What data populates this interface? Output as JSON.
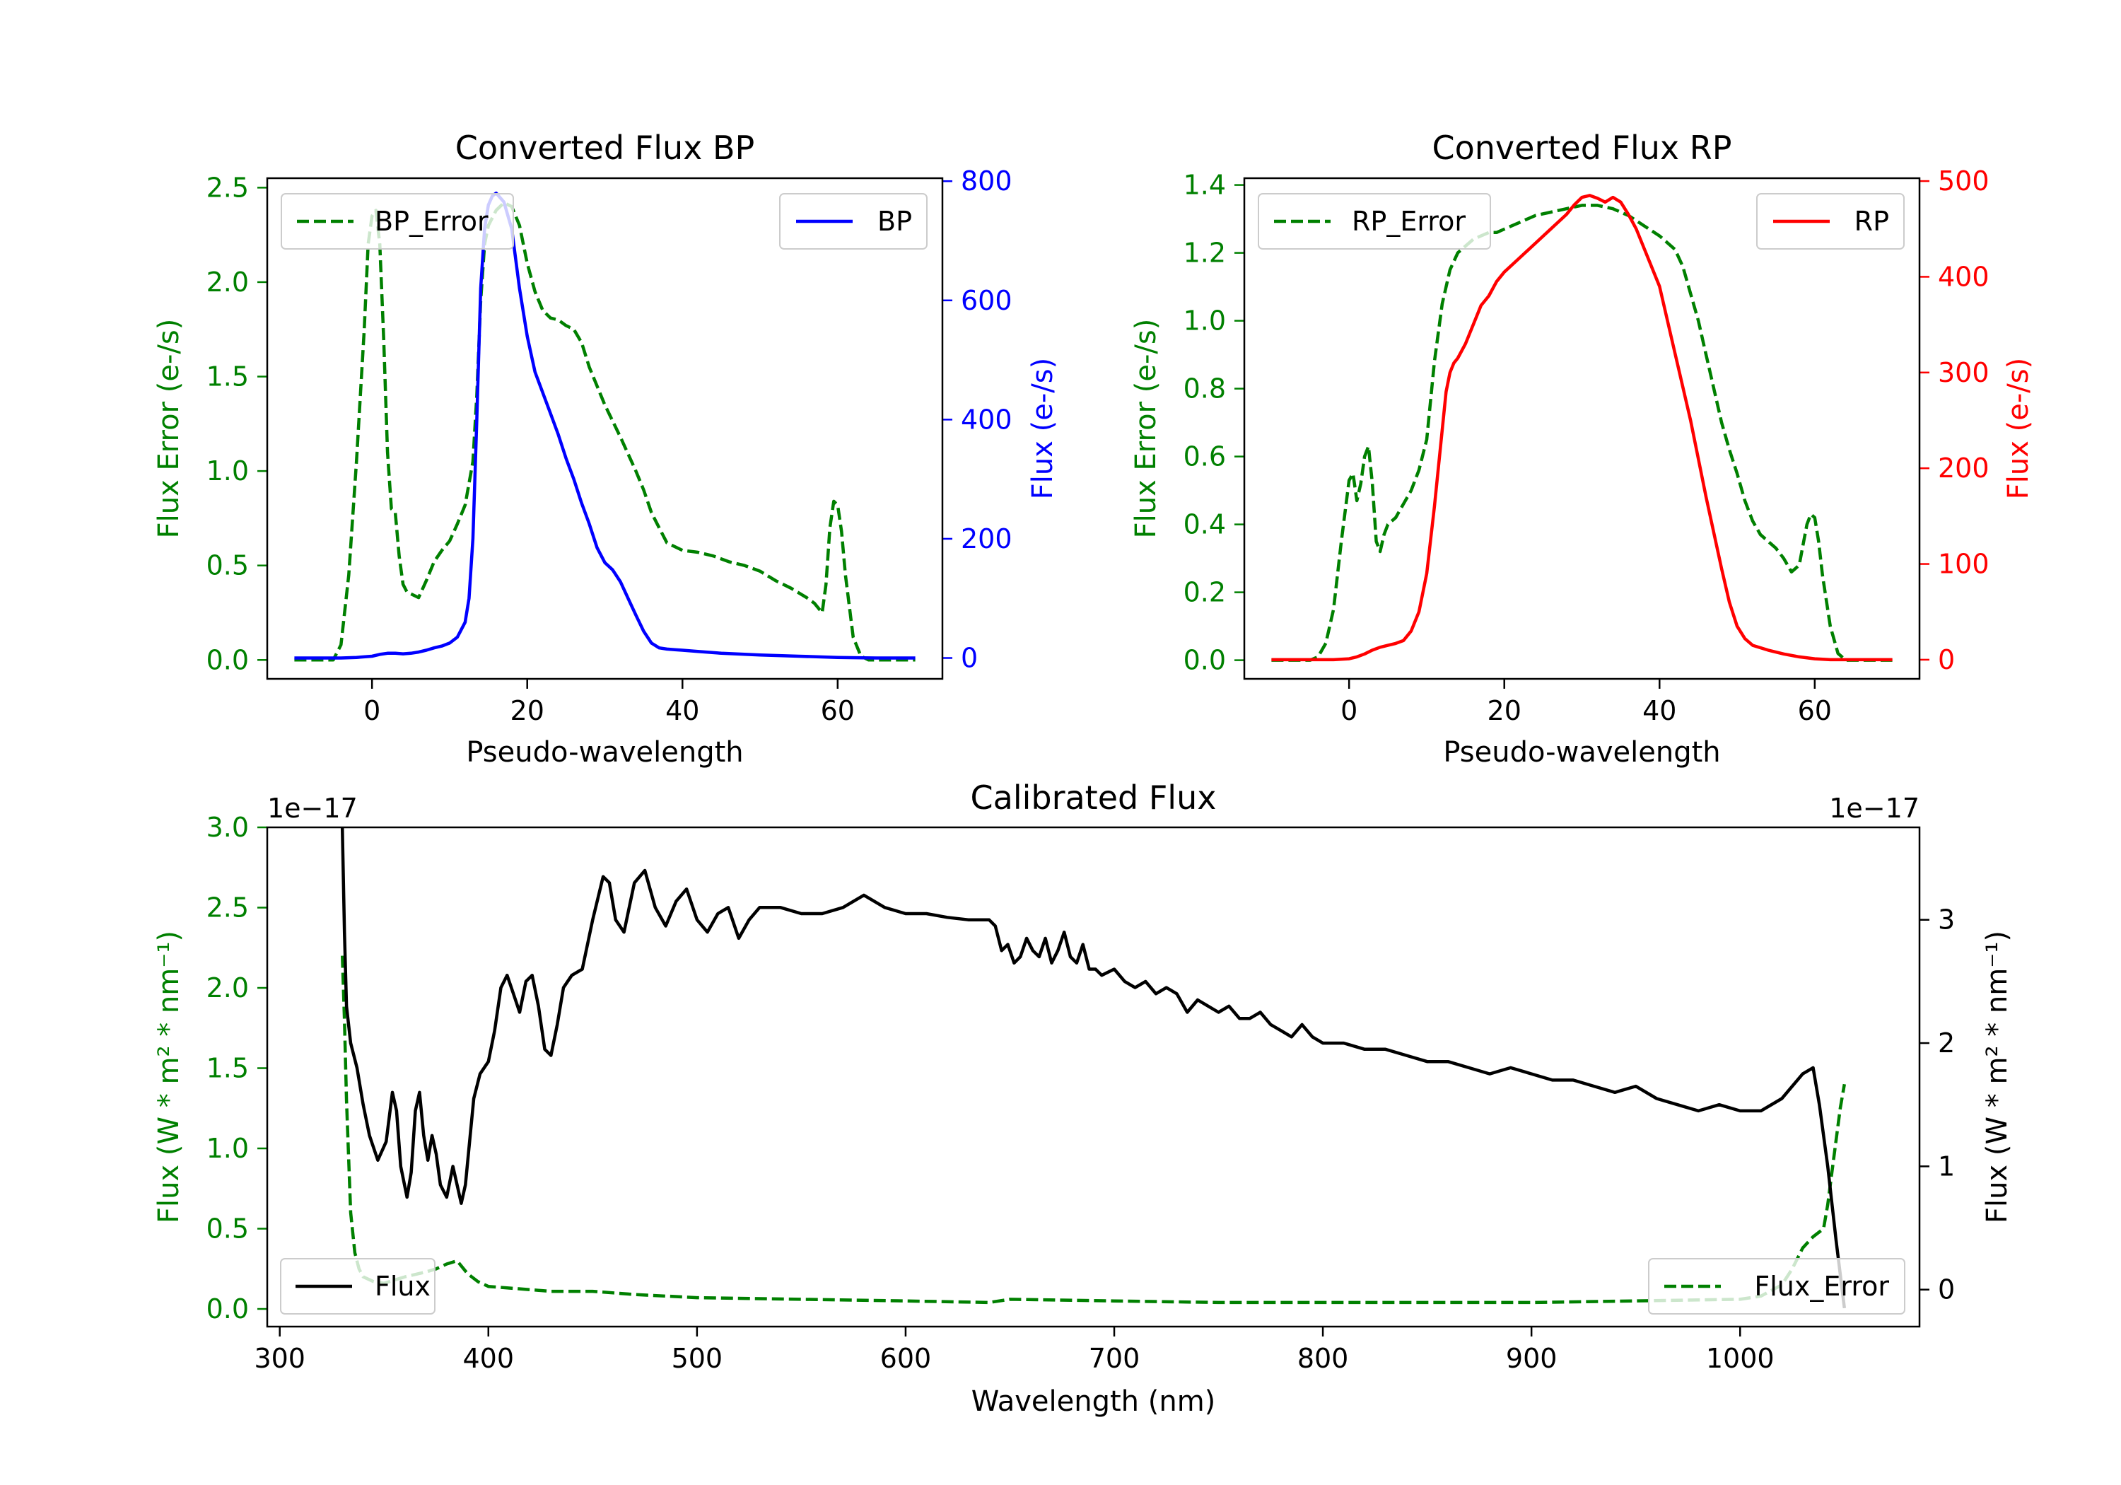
{
  "chart_data": [
    {
      "type": "line",
      "title": "Converted Flux BP",
      "xlabel": "Pseudo-wavelength",
      "ylabel_left": "Flux Error (e-/s)",
      "ylabel_right": "Flux (e-/s)",
      "xlim": [
        -13.5,
        73.5
      ],
      "ylim_left": [
        -0.1,
        2.55
      ],
      "ylim_right": [
        -35,
        805
      ],
      "xticks": [
        0,
        20,
        40,
        60
      ],
      "yticks_left": [
        0.0,
        0.5,
        1.0,
        1.5,
        2.0,
        2.5
      ],
      "yticks_right": [
        0,
        200,
        400,
        600,
        800
      ],
      "left_axis_color": "#008000",
      "right_axis_color": "#0000ff",
      "legend_left": "top-left",
      "legend_right": "top-right",
      "series": [
        {
          "name": "BP_Error",
          "axis": "left",
          "style": "dashed",
          "color": "#008000",
          "x": [
            -10,
            -5,
            -4,
            -3,
            -2,
            -1,
            -0.5,
            0,
            0.5,
            1,
            1.5,
            2,
            2.5,
            3,
            3.5,
            4,
            4.5,
            5,
            6,
            7,
            8,
            9,
            10,
            11,
            12,
            13,
            13.5,
            14,
            14.5,
            15,
            16,
            17,
            18,
            19,
            20,
            21,
            22,
            23,
            24,
            25,
            26,
            27,
            28,
            30,
            32,
            34,
            35,
            36,
            37,
            38,
            40,
            42,
            44,
            46,
            48,
            50,
            52,
            54,
            56,
            57,
            58,
            58.5,
            59,
            59.5,
            60,
            60.5,
            61,
            62,
            63,
            64,
            66,
            70
          ],
          "values": [
            0.0,
            0.0,
            0.08,
            0.45,
            1.05,
            1.75,
            2.2,
            2.35,
            2.38,
            2.2,
            1.7,
            1.1,
            0.8,
            0.78,
            0.55,
            0.4,
            0.36,
            0.35,
            0.33,
            0.42,
            0.52,
            0.58,
            0.63,
            0.72,
            0.82,
            1.05,
            1.4,
            1.9,
            2.2,
            2.3,
            2.38,
            2.42,
            2.4,
            2.3,
            2.1,
            1.95,
            1.85,
            1.81,
            1.8,
            1.77,
            1.75,
            1.68,
            1.55,
            1.35,
            1.18,
            1.0,
            0.9,
            0.78,
            0.7,
            0.62,
            0.58,
            0.57,
            0.55,
            0.52,
            0.5,
            0.47,
            0.42,
            0.38,
            0.33,
            0.3,
            0.25,
            0.4,
            0.7,
            0.84,
            0.82,
            0.68,
            0.45,
            0.12,
            0.02,
            0.0,
            0.0,
            0.0
          ]
        },
        {
          "name": "BP",
          "axis": "right",
          "style": "solid",
          "color": "#0000ff",
          "x": [
            -10,
            -4,
            -2,
            0,
            1,
            2,
            3,
            4,
            5,
            6,
            7,
            8,
            9,
            10,
            11,
            12,
            12.5,
            13,
            13.5,
            14,
            14.5,
            15,
            15.5,
            16,
            17,
            18,
            19,
            20,
            21,
            22,
            23,
            24,
            25,
            26,
            27,
            28,
            29,
            30,
            31,
            32,
            33,
            34,
            35,
            36,
            37,
            38,
            39,
            40,
            42,
            45,
            50,
            55,
            60,
            65,
            70
          ],
          "values": [
            0,
            0,
            1,
            3,
            6,
            8,
            8,
            7,
            8,
            10,
            13,
            17,
            20,
            25,
            35,
            60,
            100,
            200,
            400,
            620,
            720,
            760,
            775,
            780,
            765,
            720,
            620,
            540,
            480,
            445,
            410,
            375,
            335,
            300,
            260,
            225,
            185,
            160,
            148,
            128,
            100,
            72,
            45,
            25,
            17,
            15,
            14,
            13,
            11,
            8,
            5,
            3,
            1,
            0,
            0
          ]
        }
      ]
    },
    {
      "type": "line",
      "title": "Converted Flux RP",
      "xlabel": "Pseudo-wavelength",
      "ylabel_left": "Flux Error (e-/s)",
      "ylabel_right": "Flux (e-/s)",
      "xlim": [
        -13.5,
        73.5
      ],
      "ylim_left": [
        -0.055,
        1.42
      ],
      "ylim_right": [
        -20,
        503
      ],
      "xticks": [
        0,
        20,
        40,
        60
      ],
      "yticks_left": [
        0.0,
        0.2,
        0.4,
        0.6,
        0.8,
        1.0,
        1.2,
        1.4
      ],
      "yticks_right": [
        0,
        100,
        200,
        300,
        400,
        500
      ],
      "left_axis_color": "#008000",
      "right_axis_color": "#ff0000",
      "legend_left": "top-left",
      "legend_right": "top-right",
      "series": [
        {
          "name": "RP_Error",
          "axis": "left",
          "style": "dashed",
          "color": "#008000",
          "x": [
            -10,
            -5,
            -4,
            -3,
            -2,
            -1,
            0,
            0.5,
            1,
            1.5,
            2,
            2.5,
            3,
            3.5,
            4,
            4.5,
            5,
            6,
            7,
            8,
            9,
            10,
            11,
            12,
            13,
            14,
            15,
            16,
            17,
            18,
            19,
            20,
            22,
            24,
            26,
            28,
            30,
            32,
            34,
            36,
            38,
            40,
            42,
            43,
            44,
            45,
            46,
            47,
            48,
            49,
            50,
            51,
            52,
            53,
            54,
            55,
            56,
            57,
            58,
            58.5,
            59,
            59.5,
            60,
            60.5,
            61,
            62,
            63,
            64,
            66,
            70
          ],
          "values": [
            0.0,
            0.0,
            0.01,
            0.05,
            0.15,
            0.35,
            0.53,
            0.55,
            0.47,
            0.52,
            0.6,
            0.63,
            0.52,
            0.35,
            0.32,
            0.37,
            0.4,
            0.42,
            0.46,
            0.5,
            0.56,
            0.65,
            0.88,
            1.05,
            1.15,
            1.2,
            1.22,
            1.24,
            1.25,
            1.26,
            1.26,
            1.27,
            1.29,
            1.31,
            1.32,
            1.33,
            1.34,
            1.34,
            1.33,
            1.31,
            1.28,
            1.25,
            1.21,
            1.16,
            1.08,
            1.0,
            0.9,
            0.8,
            0.7,
            0.62,
            0.55,
            0.47,
            0.41,
            0.37,
            0.35,
            0.33,
            0.3,
            0.26,
            0.28,
            0.34,
            0.4,
            0.43,
            0.42,
            0.35,
            0.25,
            0.1,
            0.02,
            0.0,
            0.0,
            0.0
          ]
        },
        {
          "name": "RP",
          "axis": "right",
          "style": "solid",
          "color": "#ff0000",
          "x": [
            -10,
            -2,
            0,
            1,
            2,
            3,
            4,
            5,
            6,
            7,
            8,
            9,
            10,
            11,
            12,
            12.5,
            13,
            13.5,
            14,
            15,
            16,
            17,
            18,
            19,
            20,
            22,
            24,
            26,
            28,
            29,
            30,
            31,
            32,
            33,
            34,
            35,
            36,
            37,
            38,
            39,
            40,
            42,
            44,
            46,
            48,
            49,
            50,
            51,
            52,
            54,
            56,
            58,
            60,
            62,
            66,
            70
          ],
          "values": [
            0,
            0,
            1,
            3,
            6,
            10,
            13,
            15,
            17,
            20,
            30,
            50,
            90,
            160,
            240,
            280,
            300,
            310,
            315,
            330,
            350,
            370,
            380,
            395,
            405,
            420,
            435,
            450,
            465,
            475,
            483,
            485,
            482,
            478,
            483,
            478,
            465,
            450,
            430,
            410,
            390,
            320,
            250,
            170,
            95,
            60,
            35,
            22,
            15,
            10,
            6,
            3,
            1,
            0,
            0,
            0
          ]
        }
      ]
    },
    {
      "type": "line",
      "title": "Calibrated Flux",
      "xlabel": "Wavelength (nm)",
      "ylabel_left": "Flux (W * m² * nm⁻¹)",
      "ylabel_right": "Flux (W * m² * nm⁻¹)",
      "offset_left": "1e−17",
      "offset_right": "1e−17",
      "xlim": [
        294,
        1086
      ],
      "ylim_left": [
        -0.11,
        3.0
      ],
      "ylim_right": [
        -0.3,
        3.75
      ],
      "xticks": [
        300,
        400,
        500,
        600,
        700,
        800,
        900,
        1000
      ],
      "yticks_left": [
        0.0,
        0.5,
        1.0,
        1.5,
        2.0,
        2.5,
        3.0
      ],
      "yticks_right": [
        0,
        1,
        2,
        3
      ],
      "left_axis_color": "#008000",
      "right_axis_color": "#000000",
      "legend_left": "bottom-right",
      "legend_right": "bottom-left",
      "series": [
        {
          "name": "Flux_Error",
          "axis": "left",
          "style": "dashed",
          "color": "#008000",
          "x": [
            330,
            331,
            332,
            334,
            336,
            338,
            340,
            345,
            350,
            360,
            370,
            375,
            380,
            385,
            390,
            395,
            400,
            410,
            420,
            430,
            450,
            470,
            500,
            550,
            600,
            640,
            650,
            700,
            750,
            800,
            850,
            900,
            950,
            1000,
            1010,
            1020,
            1025,
            1030,
            1035,
            1038,
            1040,
            1042,
            1045,
            1048,
            1050
          ],
          "values": [
            2.2,
            1.8,
            1.3,
            0.6,
            0.35,
            0.25,
            0.2,
            0.17,
            0.16,
            0.2,
            0.23,
            0.25,
            0.28,
            0.3,
            0.22,
            0.17,
            0.14,
            0.13,
            0.12,
            0.11,
            0.11,
            0.09,
            0.07,
            0.06,
            0.05,
            0.04,
            0.06,
            0.05,
            0.04,
            0.04,
            0.04,
            0.04,
            0.05,
            0.06,
            0.08,
            0.15,
            0.25,
            0.38,
            0.45,
            0.48,
            0.5,
            0.65,
            0.95,
            1.25,
            1.4
          ]
        },
        {
          "name": "Flux",
          "axis": "right",
          "style": "solid",
          "color": "#000000",
          "x": [
            330,
            331,
            332,
            334,
            337,
            340,
            343,
            347,
            351,
            354,
            356,
            358,
            361,
            363,
            365,
            367,
            369,
            371,
            373,
            375,
            377,
            380,
            383,
            385,
            387,
            389,
            391,
            393,
            396,
            400,
            403,
            406,
            409,
            412,
            415,
            418,
            421,
            424,
            427,
            430,
            433,
            436,
            440,
            445,
            450,
            455,
            458,
            461,
            465,
            470,
            475,
            480,
            485,
            490,
            495,
            500,
            505,
            510,
            515,
            520,
            525,
            530,
            540,
            550,
            560,
            570,
            580,
            590,
            600,
            610,
            620,
            630,
            640,
            643,
            646,
            649,
            652,
            655,
            658,
            661,
            664,
            667,
            670,
            673,
            676,
            679,
            682,
            685,
            688,
            691,
            694,
            700,
            705,
            710,
            715,
            720,
            725,
            730,
            735,
            740,
            745,
            750,
            755,
            760,
            765,
            770,
            775,
            780,
            785,
            790,
            795,
            800,
            810,
            820,
            830,
            840,
            850,
            860,
            870,
            880,
            890,
            900,
            910,
            920,
            930,
            940,
            950,
            960,
            970,
            980,
            990,
            1000,
            1010,
            1020,
            1025,
            1030,
            1035,
            1038,
            1042,
            1046,
            1050
          ],
          "values": [
            3.75,
            2.9,
            2.3,
            2.0,
            1.8,
            1.5,
            1.25,
            1.05,
            1.2,
            1.6,
            1.45,
            1.0,
            0.75,
            0.95,
            1.45,
            1.6,
            1.25,
            1.05,
            1.25,
            1.1,
            0.85,
            0.75,
            1.0,
            0.85,
            0.7,
            0.85,
            1.2,
            1.55,
            1.75,
            1.85,
            2.1,
            2.45,
            2.55,
            2.4,
            2.25,
            2.5,
            2.55,
            2.3,
            1.95,
            1.9,
            2.15,
            2.45,
            2.55,
            2.6,
            3.0,
            3.35,
            3.3,
            3.0,
            2.9,
            3.3,
            3.4,
            3.1,
            2.95,
            3.15,
            3.25,
            3.0,
            2.9,
            3.05,
            3.1,
            2.85,
            3.0,
            3.1,
            3.1,
            3.05,
            3.05,
            3.1,
            3.2,
            3.1,
            3.05,
            3.05,
            3.02,
            3.0,
            3.0,
            2.95,
            2.75,
            2.8,
            2.65,
            2.7,
            2.85,
            2.75,
            2.7,
            2.85,
            2.65,
            2.75,
            2.9,
            2.7,
            2.65,
            2.8,
            2.6,
            2.6,
            2.55,
            2.6,
            2.5,
            2.45,
            2.5,
            2.4,
            2.45,
            2.4,
            2.25,
            2.35,
            2.3,
            2.25,
            2.3,
            2.2,
            2.2,
            2.25,
            2.15,
            2.1,
            2.05,
            2.15,
            2.05,
            2.0,
            2.0,
            1.95,
            1.95,
            1.9,
            1.85,
            1.85,
            1.8,
            1.75,
            1.8,
            1.75,
            1.7,
            1.7,
            1.65,
            1.6,
            1.65,
            1.55,
            1.5,
            1.45,
            1.5,
            1.45,
            1.45,
            1.55,
            1.65,
            1.75,
            1.8,
            1.5,
            1.0,
            0.4,
            -0.15
          ]
        }
      ]
    }
  ]
}
